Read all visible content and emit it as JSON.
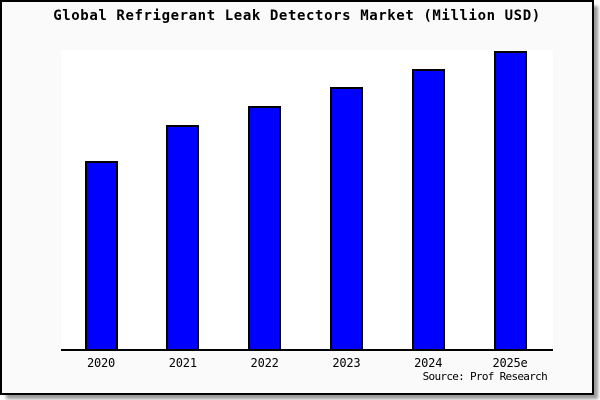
{
  "page": {
    "title": "Global Refrigerant Leak Detectors Market (Million USD)",
    "source_caption": "Source: Prof Research"
  },
  "colors": {
    "bar_fill": "#0000ff",
    "bar_border": "#000000",
    "axis": "#000000",
    "frame_border": "#000000",
    "frame_shadow": "#999999",
    "outer_background": "#fafafa",
    "plot_background": "#ffffff",
    "text": "#000000"
  },
  "chart_data": {
    "type": "bar",
    "title": "Global Refrigerant Leak Detectors Market (Million USD)",
    "categories": [
      "2020",
      "2021",
      "2022",
      "2023",
      "2024",
      "2025e"
    ],
    "values": [
      63,
      75.3,
      81.7,
      88,
      94,
      100
    ],
    "values_unit": "relative index (y-axis unlabeled; 2025e bar = 100)",
    "series_name": "Market size (Million USD)",
    "xlabel": "",
    "ylabel": "",
    "ylim": [
      0,
      100
    ],
    "y_axis_ticks": [],
    "grid": false,
    "legend": false,
    "value_labels_shown": false,
    "source": "Source: Prof Research"
  }
}
